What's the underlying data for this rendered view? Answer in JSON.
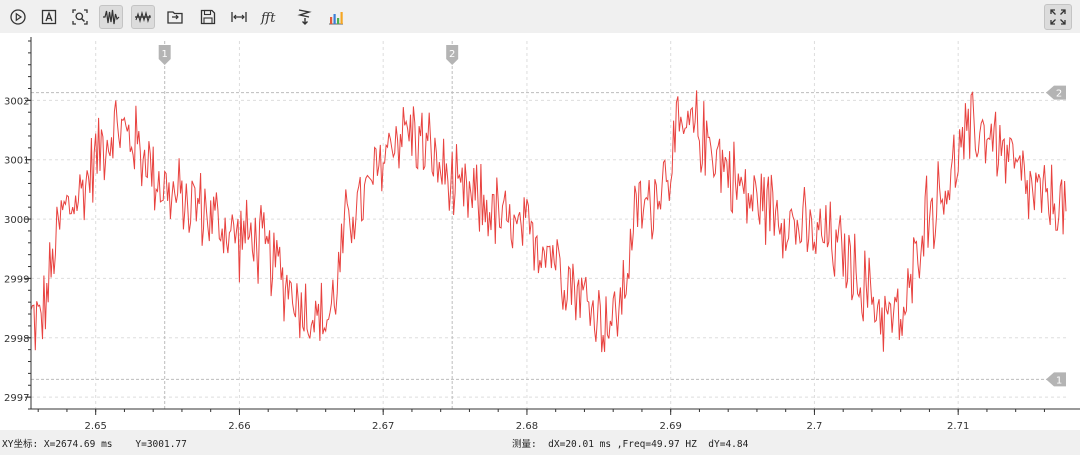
{
  "toolbar": {
    "buttons": [
      {
        "icon": "play-icon",
        "checked": false
      },
      {
        "icon": "auto-scale-icon",
        "checked": false
      },
      {
        "icon": "zoom-fit-icon",
        "checked": false
      },
      {
        "icon": "waveform-icon",
        "checked": true
      },
      {
        "icon": "measure-cursor-icon",
        "checked": true
      },
      {
        "icon": "open-file-icon",
        "checked": false
      },
      {
        "icon": "save-icon",
        "checked": false
      },
      {
        "icon": "horizontal-span-icon",
        "checked": false
      },
      {
        "icon": "fft-icon",
        "label": "fft",
        "checked": false
      },
      {
        "icon": "export-icon",
        "checked": false
      },
      {
        "icon": "bar-chart-icon",
        "checked": false
      }
    ],
    "fullscreen_icon": "fullscreen-icon"
  },
  "status": {
    "xy": "XY坐标: X=2674.69 ms    Y=3001.77",
    "measure": "测量:  dX=20.01 ms ,Freq=49.97 HZ  dY=4.84"
  },
  "colors": {
    "series": "#e8423f",
    "grid": "#dddddd",
    "marker": "#b4b4b4"
  },
  "chart_data": {
    "type": "line",
    "title": "",
    "xlabel": "",
    "ylabel": "",
    "xlim": [
      2.6455,
      2.7175
    ],
    "ylim": [
      2996.8,
      3003.0
    ],
    "x_ticks": [
      2.65,
      2.66,
      2.67,
      2.68,
      2.69,
      2.7,
      2.71
    ],
    "x_tick_labels": [
      "2.65",
      "2.66",
      "2.67",
      "2.68",
      "2.69",
      "2.7",
      "2.71"
    ],
    "y_ticks": [
      2997,
      2998,
      2999,
      3000,
      3001,
      3002
    ],
    "y_tick_labels": [
      "2997",
      "2998",
      "2999",
      "3000",
      "3001",
      "3002"
    ],
    "grid": true,
    "legend": "none",
    "series": [
      {
        "period": 0.02,
        "sample_step": 0.0001,
        "anchors_x": [
          0.0,
          0.004,
          0.0098,
          0.0118,
          0.0152,
          0.02
        ],
        "anchors_y": [
          3000.3,
          2999.7,
          2998.3,
          3000.2,
          3001.5,
          3000.3
        ],
        "noise_amplitude": 0.85
      }
    ],
    "vertical_cursors": [
      {
        "label": "1",
        "x": 2.6548
      },
      {
        "label": "2",
        "x": 2.6748
      }
    ],
    "horizontal_cursors": [
      {
        "label": "2",
        "y": 3002.13
      },
      {
        "label": "1",
        "y": 2997.3
      }
    ]
  }
}
